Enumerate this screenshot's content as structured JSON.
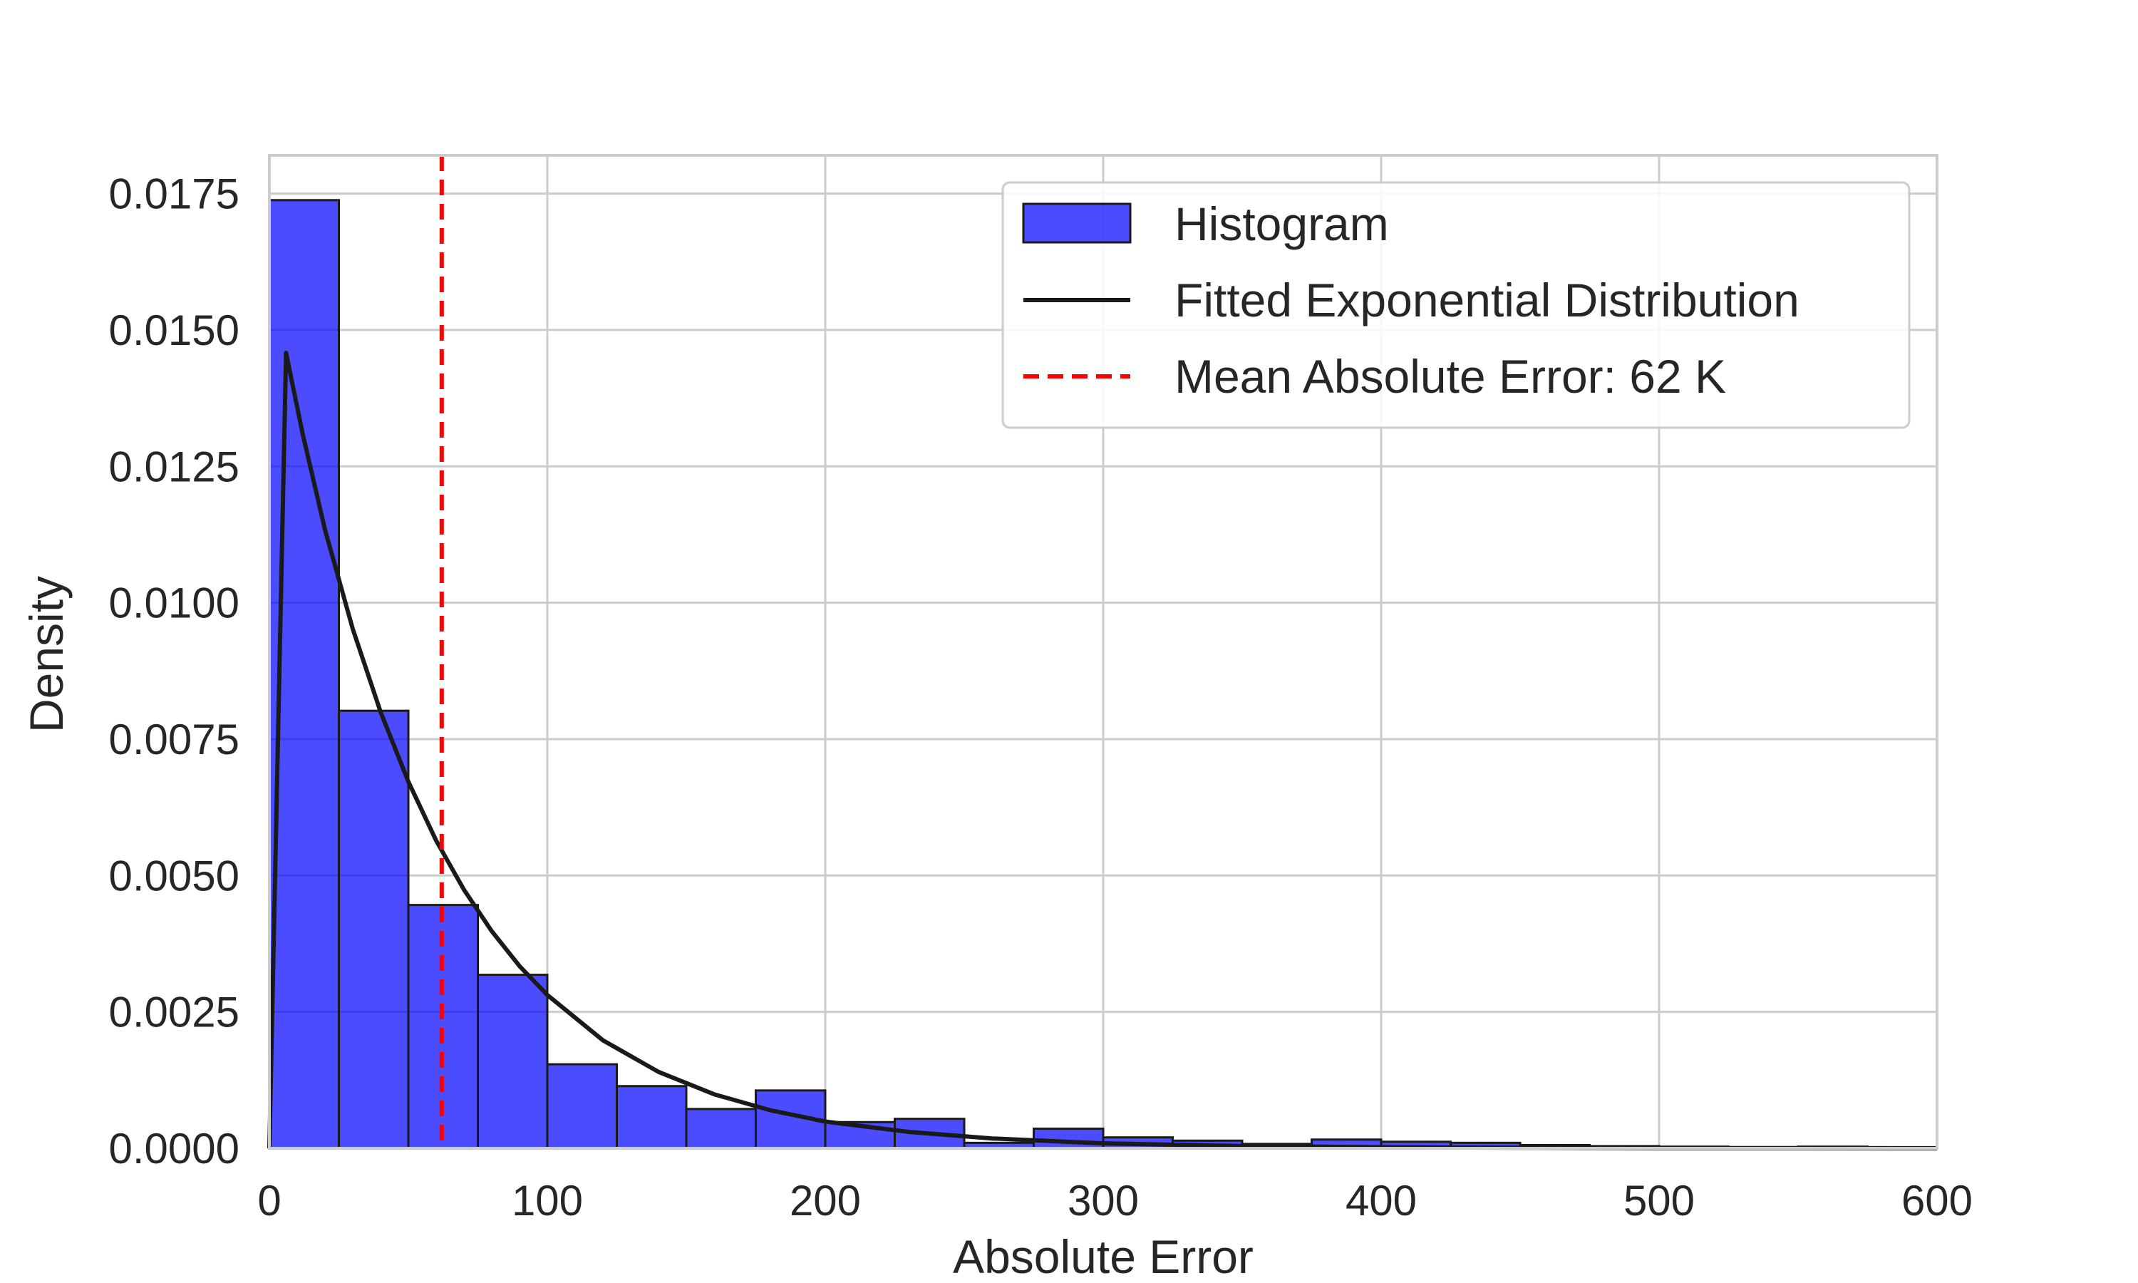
{
  "chart_data": {
    "type": "bar",
    "title": "",
    "xlabel": "Absolute Error",
    "ylabel": "Density",
    "xlim": [
      0,
      600
    ],
    "ylim": [
      0,
      0.0182
    ],
    "xticks": [
      0,
      100,
      200,
      300,
      400,
      500,
      600
    ],
    "xtick_labels": [
      "0",
      "100",
      "200",
      "300",
      "400",
      "500",
      "600"
    ],
    "yticks": [
      0,
      0.0025,
      0.005,
      0.0075,
      0.01,
      0.0125,
      0.015,
      0.0175
    ],
    "ytick_labels": [
      "0.0000",
      "0.0025",
      "0.0050",
      "0.0075",
      "0.0100",
      "0.0125",
      "0.0150",
      "0.0175"
    ],
    "grid": true,
    "legend_position": "top-right",
    "histogram": {
      "name": "Histogram",
      "color": "#0000ff",
      "bin_width": 25,
      "bin_edges": [
        0,
        25,
        50,
        75,
        100,
        125,
        150,
        175,
        200,
        225,
        250,
        275,
        300,
        325,
        350,
        375,
        400,
        425,
        450,
        475,
        500,
        525,
        550,
        575,
        600
      ],
      "values": [
        0.01738,
        0.00802,
        0.00446,
        0.00318,
        0.00154,
        0.00114,
        0.00072,
        0.00106,
        0.00048,
        0.00054,
        0.0001,
        0.00036,
        0.0002,
        0.00014,
        8e-05,
        0.00016,
        0.00012,
        0.0001,
        6e-05,
        4e-05,
        3e-05,
        2e-05,
        3e-05,
        1e-05
      ]
    },
    "fit_line": {
      "name": "Fitted Exponential Distribution",
      "color": "#1a1a1a",
      "x": [
        0,
        6,
        12,
        20,
        30,
        40,
        50,
        60,
        70,
        80,
        90,
        100,
        120,
        140,
        160,
        180,
        200,
        230,
        260,
        300,
        350,
        400,
        450,
        500,
        550,
        600
      ],
      "y": [
        0,
        0.01458,
        0.01309,
        0.01134,
        0.00952,
        0.008,
        0.00672,
        0.00564,
        0.00474,
        0.00398,
        0.00334,
        0.00281,
        0.00198,
        0.0014,
        0.00099,
        0.0007,
        0.00049,
        0.0003,
        0.00018,
        9e-05,
        4e-05,
        2e-05,
        1e-05,
        4e-06,
        2e-06,
        1e-06
      ]
    },
    "mean_line": {
      "name": "Mean Absolute Error: 62 K",
      "x": 62,
      "color": "#ff0000"
    },
    "legend": [
      {
        "label": "Histogram",
        "kind": "patch",
        "color": "#0000ff"
      },
      {
        "label": "Fitted Exponential Distribution",
        "kind": "line",
        "color": "#1a1a1a"
      },
      {
        "label": "Mean Absolute Error: 62 K",
        "kind": "dashed",
        "color": "#ff0000"
      }
    ]
  }
}
